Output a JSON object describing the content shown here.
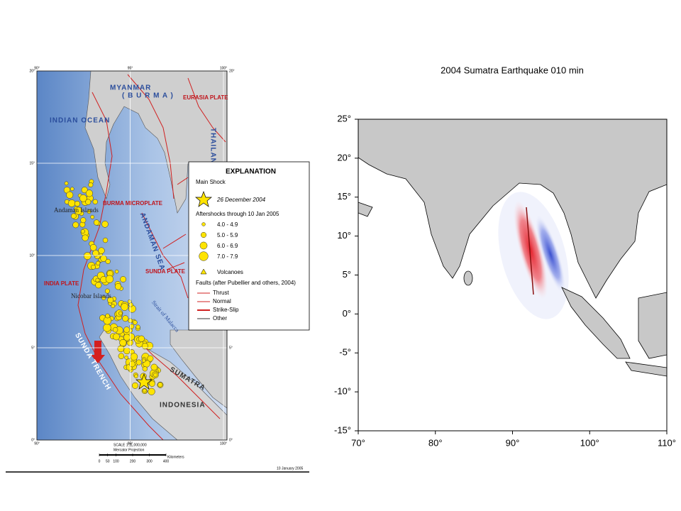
{
  "left_map": {
    "lon_ticks": [
      {
        "value": 90,
        "label": "90°"
      },
      {
        "value": 95,
        "label": "95°"
      },
      {
        "value": 100,
        "label": "100°"
      }
    ],
    "lat_ticks": [
      {
        "value": 20,
        "label": "20°"
      },
      {
        "value": 15,
        "label": "15°"
      },
      {
        "value": 10,
        "label": "10°"
      },
      {
        "value": 5,
        "label": "5°"
      },
      {
        "value": 0,
        "label": "0°"
      }
    ],
    "labels": {
      "myanmar": "MYANMAR",
      "burma": "( B U R M A )",
      "eurasia": "EURASIA PLATE",
      "thailand": "THAILAND",
      "indian_ocean": "INDIAN OCEAN",
      "burma_microplate": "BURMA MICROPLATE",
      "andaman_islands": "Andaman Islands",
      "andaman_sea": "ANDAMAN SEA",
      "india_plate": "INDIA PLATE",
      "sunda_plate": "SUNDA PLATE",
      "nicobar": "Nicobar Islands",
      "malacca": "Strait of Malacca",
      "sunda_trench": "SUNDA TRENCH",
      "sumatra": "SUMATRA",
      "indonesia": "INDONESIA"
    },
    "legend": {
      "title": "EXPLANATION",
      "main_shock": "Main Shock",
      "main_shock_date": "26 December 2004",
      "aftershocks": "Aftershocks through 10 Jan 2005",
      "magnitudes": [
        "4.0 - 4.9",
        "5.0 - 5.9",
        "6.0 - 6.9",
        "7.0 - 7.9"
      ],
      "volcanoes": "Volcanoes",
      "faults": "Faults (after Pubellier and others, 2004)",
      "fault_types": [
        "Thrust",
        "Normal",
        "Strike-Slip",
        "Other"
      ]
    },
    "scale": {
      "title": "SCALE 1:11,000,000",
      "projection": "Mercator Projection",
      "ticks": [
        0,
        50,
        100,
        200,
        300,
        400
      ],
      "unit": "Kilometers"
    },
    "date": "10 January 2005"
  },
  "right_map": {
    "title": "2004 Sumatra Earthquake  010 min",
    "xlim": [
      70,
      110
    ],
    "ylim": [
      -15,
      25
    ],
    "xticks": [
      {
        "value": 70,
        "label": "70°"
      },
      {
        "value": 80,
        "label": "80°"
      },
      {
        "value": 90,
        "label": "90°"
      },
      {
        "value": 100,
        "label": "100°"
      },
      {
        "value": 110,
        "label": "110°"
      }
    ],
    "yticks": [
      {
        "value": 25,
        "label": "25°"
      },
      {
        "value": 20,
        "label": "20°"
      },
      {
        "value": 15,
        "label": "15°"
      },
      {
        "value": 10,
        "label": "10°"
      },
      {
        "value": 5,
        "label": "5°"
      },
      {
        "value": 0,
        "label": "0°"
      },
      {
        "value": -5,
        "label": "-5°"
      },
      {
        "value": -10,
        "label": "-10°"
      },
      {
        "value": -15,
        "label": "-15°"
      }
    ]
  }
}
